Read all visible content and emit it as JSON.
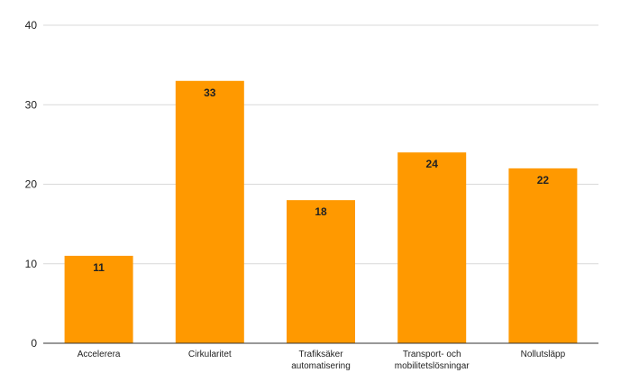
{
  "chart_data": {
    "type": "bar",
    "categories": [
      "Accelerera",
      "Cirkularitet",
      "Trafiksäker automatisering",
      "Transport- och mobilitetslösningar",
      "Nollutsläpp"
    ],
    "category_lines": [
      [
        "Accelerera"
      ],
      [
        "Cirkularitet"
      ],
      [
        "Trafiksäker",
        "automatisering"
      ],
      [
        "Transport- och",
        "mobilitetslösningar"
      ],
      [
        "Nollutsläpp"
      ]
    ],
    "values": [
      11,
      33,
      18,
      24,
      22
    ],
    "data_labels": [
      "11",
      "33",
      "18",
      "24",
      "22"
    ],
    "title": "",
    "xlabel": "",
    "ylabel": "",
    "ylim": [
      0,
      40
    ],
    "yticks": [
      0,
      10,
      20,
      30,
      40
    ],
    "ytick_labels": [
      "0",
      "10",
      "20",
      "30",
      "40"
    ],
    "grid": true,
    "legend": "none",
    "bar_color": "#ff9900"
  }
}
